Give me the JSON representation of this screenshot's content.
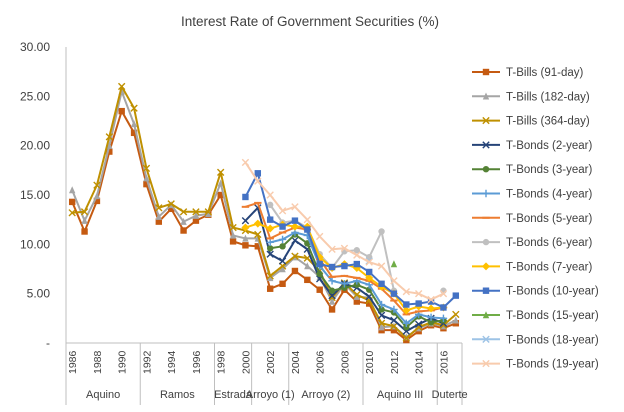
{
  "chart_data": {
    "type": "line",
    "title": "Interest Rate of Government Securities (%)",
    "xlabel": "",
    "ylabel": "",
    "ylim": [
      0,
      30
    ],
    "ytick_labels": [
      "-",
      "5.00",
      "10.00",
      "15.00",
      "20.00",
      "25.00",
      "30.00"
    ],
    "grid": false,
    "legend_position": "right",
    "x": [
      1986,
      1987,
      1988,
      1989,
      1990,
      1991,
      1992,
      1993,
      1994,
      1995,
      1996,
      1997,
      1998,
      1999,
      2000,
      2001,
      2002,
      2003,
      2004,
      2005,
      2006,
      2007,
      2008,
      2009,
      2010,
      2011,
      2012,
      2013,
      2014,
      2015,
      2016,
      2017
    ],
    "x_tick_labels": [
      "1986",
      "1988",
      "1990",
      "1992",
      "1994",
      "1996",
      "1998",
      "2000",
      "2002",
      "2004",
      "2006",
      "2008",
      "2010",
      "2012",
      "2014",
      "2016"
    ],
    "periods": [
      {
        "label": "Aquino",
        "start": 1986,
        "end": 1991
      },
      {
        "label": "Ramos",
        "start": 1992,
        "end": 1997
      },
      {
        "label": "Estrada",
        "start": 1998,
        "end": 2000
      },
      {
        "label": "Arroyo (1)",
        "start": 2001,
        "end": 2003
      },
      {
        "label": "Arroyo (2)",
        "start": 2004,
        "end": 2009
      },
      {
        "label": "Aquino III",
        "start": 2010,
        "end": 2015
      },
      {
        "label": "Duterte",
        "start": 2016,
        "end": 2017
      }
    ],
    "series": [
      {
        "name": "T-Bills (91-day)",
        "color": "#c55a11",
        "marker": "square",
        "values": [
          14.3,
          11.3,
          14.4,
          19.4,
          23.5,
          21.3,
          16.1,
          12.3,
          13.6,
          11.4,
          12.4,
          13.0,
          15.0,
          10.3,
          9.9,
          9.8,
          5.5,
          6.0,
          7.3,
          6.4,
          5.4,
          3.4,
          5.4,
          4.2,
          4.0,
          1.3,
          1.3,
          0.3,
          1.2,
          1.8,
          1.5,
          2.0
        ]
      },
      {
        "name": "T-Bills (182-day)",
        "color": "#a5a5a5",
        "marker": "triangle",
        "values": [
          15.5,
          12.4,
          14.9,
          20.0,
          25.5,
          22.2,
          16.7,
          12.8,
          14.0,
          12.3,
          12.9,
          13.1,
          16.2,
          10.9,
          10.6,
          10.6,
          6.6,
          7.5,
          8.7,
          7.8,
          6.7,
          4.2,
          6.0,
          4.7,
          4.6,
          1.6,
          1.7,
          0.6,
          1.5,
          2.0,
          1.7,
          2.3
        ]
      },
      {
        "name": "T-Bills (364-day)",
        "color": "#bf9000",
        "marker": "x",
        "values": [
          13.2,
          13.3,
          16.0,
          20.9,
          26.0,
          23.8,
          17.7,
          13.7,
          14.1,
          13.3,
          13.3,
          13.3,
          17.3,
          11.7,
          11.4,
          11.0,
          6.8,
          7.8,
          8.8,
          8.6,
          7.3,
          4.6,
          6.1,
          4.9,
          4.3,
          2.0,
          1.7,
          0.5,
          1.6,
          2.1,
          1.8,
          2.9
        ]
      },
      {
        "name": "T-Bonds (2-year)",
        "color": "#264478",
        "marker": "x",
        "values": [
          null,
          null,
          null,
          null,
          null,
          null,
          null,
          null,
          null,
          null,
          null,
          null,
          null,
          null,
          12.4,
          13.7,
          9.0,
          8.3,
          10.4,
          9.5,
          6.5,
          4.8,
          6.0,
          5.6,
          4.7,
          2.8,
          2.3,
          1.2,
          1.9,
          2.5,
          2.0,
          null
        ]
      },
      {
        "name": "T-Bonds (3-year)",
        "color": "#548235",
        "marker": "circle",
        "values": [
          null,
          null,
          null,
          null,
          null,
          null,
          null,
          null,
          null,
          null,
          null,
          null,
          null,
          null,
          null,
          null,
          9.6,
          9.8,
          11.0,
          10.1,
          7.0,
          5.3,
          5.6,
          5.9,
          5.4,
          3.4,
          3.1,
          1.6,
          2.7,
          2.1,
          2.3,
          null
        ]
      },
      {
        "name": "T-Bonds (4-year)",
        "color": "#5b9bd5",
        "marker": "plus",
        "values": [
          null,
          null,
          null,
          null,
          null,
          null,
          null,
          null,
          null,
          null,
          null,
          null,
          null,
          null,
          null,
          null,
          10.2,
          10.5,
          11.2,
          10.9,
          7.8,
          6.3,
          6.0,
          6.3,
          5.9,
          3.9,
          3.4,
          2.0,
          2.9,
          2.6,
          2.5,
          null
        ]
      },
      {
        "name": "T-Bonds (5-year)",
        "color": "#ed7d31",
        "marker": "dash",
        "values": [
          null,
          null,
          null,
          null,
          null,
          null,
          null,
          null,
          null,
          null,
          null,
          null,
          null,
          null,
          13.8,
          14.2,
          10.6,
          11.2,
          11.7,
          11.5,
          8.5,
          6.7,
          6.8,
          6.6,
          6.3,
          5.5,
          4.3,
          2.9,
          3.2,
          3.3,
          3.6,
          null
        ]
      },
      {
        "name": "T-Bonds (6-year)",
        "color": "#c0c0c0",
        "marker": "circle",
        "values": [
          null,
          null,
          null,
          null,
          null,
          null,
          null,
          null,
          null,
          null,
          null,
          null,
          null,
          null,
          null,
          null,
          14.0,
          12.2,
          12.4,
          11.7,
          9.0,
          7.6,
          9.3,
          9.4,
          8.7,
          11.3,
          5.3,
          null,
          null,
          null,
          5.3,
          null
        ]
      },
      {
        "name": "T-Bonds (7-year)",
        "color": "#ffc000",
        "marker": "diamond",
        "values": [
          null,
          null,
          null,
          null,
          null,
          null,
          null,
          null,
          null,
          null,
          null,
          null,
          null,
          null,
          11.7,
          12.1,
          11.6,
          12.0,
          11.8,
          11.8,
          8.7,
          7.6,
          8.0,
          7.6,
          6.6,
          5.7,
          5.0,
          3.3,
          3.7,
          3.5,
          3.6,
          null
        ]
      },
      {
        "name": "T-Bonds (10-year)",
        "color": "#4472c4",
        "marker": "square",
        "values": [
          null,
          null,
          null,
          null,
          null,
          null,
          null,
          null,
          null,
          null,
          null,
          null,
          null,
          null,
          14.8,
          17.2,
          12.5,
          11.8,
          12.4,
          11.5,
          8.0,
          7.7,
          7.8,
          8.0,
          7.2,
          6.0,
          5.0,
          3.9,
          4.0,
          4.2,
          3.6,
          4.8
        ]
      },
      {
        "name": "T-Bonds (15-year)",
        "color": "#70ad47",
        "marker": "triangle",
        "values": [
          null,
          null,
          null,
          null,
          null,
          null,
          null,
          null,
          null,
          null,
          null,
          null,
          null,
          null,
          null,
          null,
          null,
          null,
          null,
          null,
          null,
          null,
          null,
          null,
          null,
          null,
          8.0,
          null,
          null,
          null,
          null,
          null
        ]
      },
      {
        "name": "T-Bonds (18-year)",
        "color": "#9dc3e6",
        "marker": "x",
        "values": [
          null,
          null,
          null,
          null,
          null,
          null,
          null,
          null,
          null,
          null,
          null,
          null,
          null,
          null,
          null,
          null,
          null,
          null,
          null,
          null,
          null,
          null,
          null,
          null,
          8.3,
          null,
          null,
          null,
          null,
          null,
          null,
          null
        ]
      },
      {
        "name": "T-Bonds (19-year)",
        "color": "#f8cbad",
        "marker": "x",
        "values": [
          null,
          null,
          null,
          null,
          null,
          null,
          null,
          null,
          null,
          null,
          null,
          null,
          null,
          null,
          18.3,
          16.4,
          15.0,
          13.4,
          13.8,
          12.5,
          10.8,
          9.5,
          9.6,
          8.9,
          8.2,
          7.8,
          6.3,
          5.2,
          5.0,
          4.4,
          5.0,
          null
        ]
      }
    ]
  }
}
